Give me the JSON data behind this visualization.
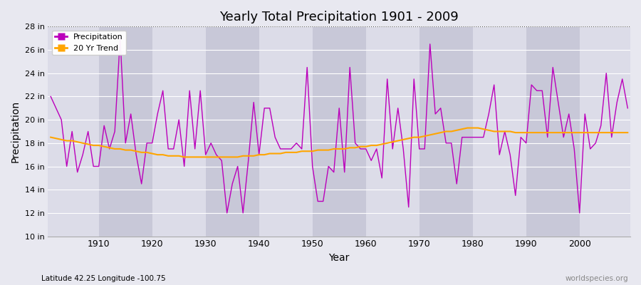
{
  "title": "Yearly Total Precipitation 1901 - 2009",
  "xlabel": "Year",
  "ylabel": "Precipitation",
  "subtitle": "Latitude 42.25 Longitude -100.75",
  "watermark": "worldspecies.org",
  "ylim": [
    10,
    28
  ],
  "yticks": [
    10,
    12,
    14,
    16,
    18,
    20,
    22,
    24,
    26,
    28
  ],
  "ytick_labels": [
    "10 in",
    "12 in",
    "14 in",
    "16 in",
    "18 in",
    "20 in",
    "22 in",
    "24 in",
    "26 in",
    "28 in"
  ],
  "xlim": [
    1900.5,
    2009.5
  ],
  "xticks": [
    1910,
    1920,
    1930,
    1940,
    1950,
    1960,
    1970,
    1980,
    1990,
    2000
  ],
  "precip_color": "#BB00BB",
  "trend_color": "#FFA500",
  "fig_bg": "#E8E8F0",
  "plot_bg": "#DCDCE8",
  "years": [
    1901,
    1902,
    1903,
    1904,
    1905,
    1906,
    1907,
    1908,
    1909,
    1910,
    1911,
    1912,
    1913,
    1914,
    1915,
    1916,
    1917,
    1918,
    1919,
    1920,
    1921,
    1922,
    1923,
    1924,
    1925,
    1926,
    1927,
    1928,
    1929,
    1930,
    1931,
    1932,
    1933,
    1934,
    1935,
    1936,
    1937,
    1938,
    1939,
    1940,
    1941,
    1942,
    1943,
    1944,
    1945,
    1946,
    1947,
    1948,
    1949,
    1950,
    1951,
    1952,
    1953,
    1954,
    1955,
    1956,
    1957,
    1958,
    1959,
    1960,
    1961,
    1962,
    1963,
    1964,
    1965,
    1966,
    1967,
    1968,
    1969,
    1970,
    1971,
    1972,
    1973,
    1974,
    1975,
    1976,
    1977,
    1978,
    1979,
    1980,
    1981,
    1982,
    1983,
    1984,
    1985,
    1986,
    1987,
    1988,
    1989,
    1990,
    1991,
    1992,
    1993,
    1994,
    1995,
    1996,
    1997,
    1998,
    1999,
    2000,
    2001,
    2002,
    2003,
    2004,
    2005,
    2006,
    2007,
    2008,
    2009
  ],
  "precip": [
    22.0,
    21.0,
    20.0,
    16.0,
    19.0,
    15.5,
    17.0,
    19.0,
    16.0,
    16.0,
    19.5,
    17.5,
    19.0,
    27.0,
    18.0,
    20.5,
    17.0,
    14.5,
    18.0,
    18.0,
    20.5,
    22.5,
    17.5,
    17.5,
    20.0,
    16.0,
    22.5,
    17.5,
    22.5,
    17.0,
    18.0,
    17.0,
    16.5,
    12.0,
    14.5,
    16.0,
    12.0,
    16.5,
    21.5,
    17.0,
    21.0,
    21.0,
    18.5,
    17.5,
    17.5,
    17.5,
    18.0,
    17.5,
    24.5,
    16.0,
    13.0,
    13.0,
    16.0,
    15.5,
    21.0,
    15.5,
    24.5,
    18.0,
    17.5,
    17.5,
    16.5,
    17.5,
    15.0,
    23.5,
    17.5,
    21.0,
    17.5,
    12.5,
    23.5,
    17.5,
    17.5,
    26.5,
    20.5,
    21.0,
    18.0,
    18.0,
    14.5,
    18.5,
    18.5,
    18.5,
    18.5,
    18.5,
    20.5,
    23.0,
    17.0,
    19.0,
    17.0,
    13.5,
    18.5,
    18.0,
    23.0,
    22.5,
    22.5,
    18.5,
    24.5,
    21.5,
    18.5,
    20.5,
    17.5,
    12.0,
    20.5,
    17.5,
    18.0,
    19.5,
    24.0,
    18.5,
    21.5,
    23.5,
    21.0
  ],
  "trend_years": [
    1901,
    1902,
    1903,
    1904,
    1905,
    1906,
    1907,
    1908,
    1909,
    1910,
    1911,
    1912,
    1913,
    1914,
    1915,
    1916,
    1917,
    1918,
    1919,
    1920,
    1921,
    1922,
    1923,
    1924,
    1925,
    1926,
    1927,
    1928,
    1929,
    1930,
    1931,
    1932,
    1933,
    1934,
    1935,
    1936,
    1937,
    1938,
    1939,
    1940,
    1941,
    1942,
    1943,
    1944,
    1945,
    1946,
    1947,
    1948,
    1949,
    1950,
    1951,
    1952,
    1953,
    1954,
    1955,
    1956,
    1957,
    1958,
    1959,
    1960,
    1961,
    1962,
    1963,
    1964,
    1965,
    1966,
    1967,
    1968,
    1969,
    1970,
    1971,
    1972,
    1973,
    1974,
    1975,
    1976,
    1977,
    1978,
    1979,
    1980,
    1981,
    1982,
    1983,
    1984,
    1985,
    1986,
    1987,
    1988,
    1989,
    1990,
    1991,
    1992,
    1993,
    1994,
    1995,
    1996,
    1997,
    1998,
    1999,
    2000,
    2001,
    2002,
    2003,
    2004,
    2005,
    2006,
    2007,
    2008,
    2009
  ],
  "trend": [
    18.5,
    18.4,
    18.3,
    18.2,
    18.2,
    18.1,
    18.0,
    17.9,
    17.8,
    17.8,
    17.7,
    17.6,
    17.5,
    17.5,
    17.4,
    17.4,
    17.3,
    17.2,
    17.2,
    17.1,
    17.0,
    17.0,
    16.9,
    16.9,
    16.9,
    16.8,
    16.8,
    16.8,
    16.8,
    16.8,
    16.8,
    16.8,
    16.8,
    16.8,
    16.8,
    16.8,
    16.9,
    16.9,
    16.9,
    17.0,
    17.0,
    17.1,
    17.1,
    17.1,
    17.2,
    17.2,
    17.2,
    17.3,
    17.3,
    17.3,
    17.4,
    17.4,
    17.4,
    17.5,
    17.5,
    17.5,
    17.6,
    17.6,
    17.7,
    17.7,
    17.8,
    17.8,
    17.9,
    18.0,
    18.1,
    18.2,
    18.3,
    18.4,
    18.5,
    18.5,
    18.6,
    18.7,
    18.8,
    18.9,
    19.0,
    19.0,
    19.1,
    19.2,
    19.3,
    19.3,
    19.3,
    19.2,
    19.1,
    19.0,
    19.0,
    19.0,
    19.0,
    18.9,
    18.9,
    18.9,
    18.9,
    18.9,
    18.9,
    18.9,
    18.9,
    18.9,
    18.9,
    18.9,
    18.9,
    18.9,
    18.9,
    18.9,
    18.9,
    18.9,
    18.9,
    18.9,
    18.9,
    18.9,
    18.9
  ]
}
